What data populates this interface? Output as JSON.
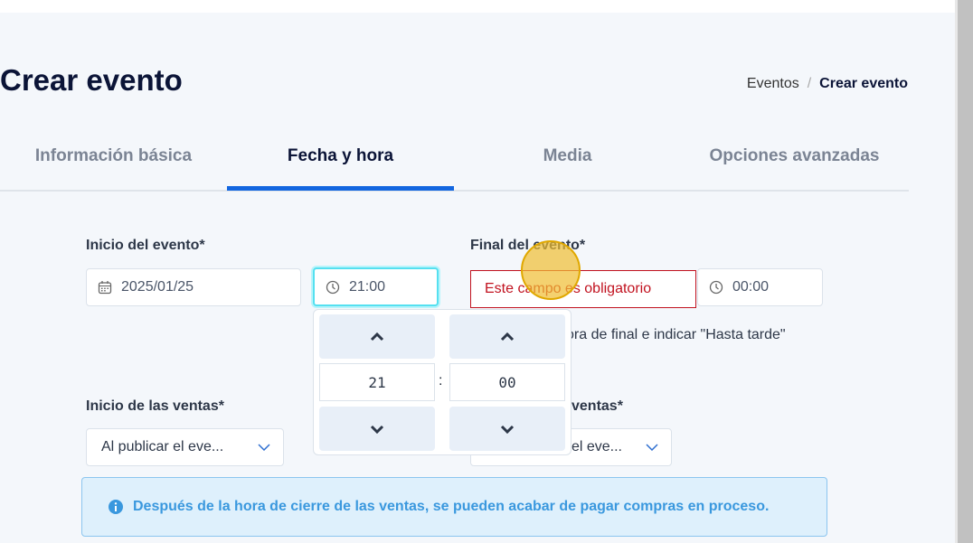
{
  "page": {
    "title": "Crear evento"
  },
  "breadcrumb": {
    "parent": "Eventos",
    "separator": "/",
    "current": "Crear evento"
  },
  "tabs": [
    {
      "label": "Información básica"
    },
    {
      "label": "Fecha y hora",
      "active": true
    },
    {
      "label": "Media"
    },
    {
      "label": "Opciones avanzadas"
    }
  ],
  "start": {
    "label": "Inicio del evento*",
    "date": "2025/01/25",
    "time": "21:00"
  },
  "end": {
    "label": "Final del evento*",
    "error": "Este campo es obligatorio",
    "time": "00:00",
    "note": "ora de final e indicar \"Hasta tarde\""
  },
  "picker": {
    "hours": "21",
    "minutes": "00",
    "separator": ":"
  },
  "sales_start": {
    "label": "Inicio de las ventas*",
    "value": "Al publicar el eve..."
  },
  "sales_end": {
    "label": "ventas*",
    "value": "el eve..."
  },
  "alert": {
    "text": "Después de la hora de cierre de las ventas, se pueden acabar de pagar compras en proceso."
  }
}
